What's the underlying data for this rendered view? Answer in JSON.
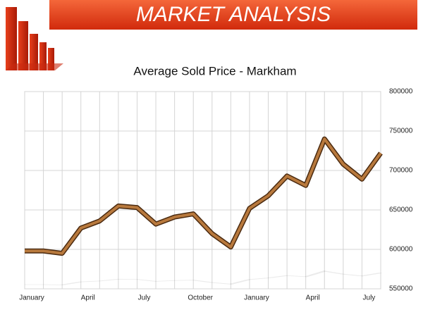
{
  "header": {
    "title": "MARKET ANALYSIS"
  },
  "chart_data": {
    "type": "line",
    "title": "Average Sold Price - Markham",
    "categories": [
      "January",
      null,
      null,
      "April",
      null,
      null,
      "July",
      null,
      null,
      "October",
      null,
      null,
      "January",
      null,
      null,
      "April",
      null,
      null,
      "July",
      null
    ],
    "values": [
      598000,
      598000,
      595000,
      627000,
      636000,
      655000,
      653000,
      632000,
      641000,
      645000,
      620000,
      603000,
      652000,
      668000,
      693000,
      681000,
      740000,
      708000,
      689000,
      722000
    ],
    "color": "#b8793d",
    "ylim": [
      550000,
      800000
    ],
    "yticks": [
      550000,
      600000,
      650000,
      700000,
      750000,
      800000
    ],
    "grid": true
  }
}
